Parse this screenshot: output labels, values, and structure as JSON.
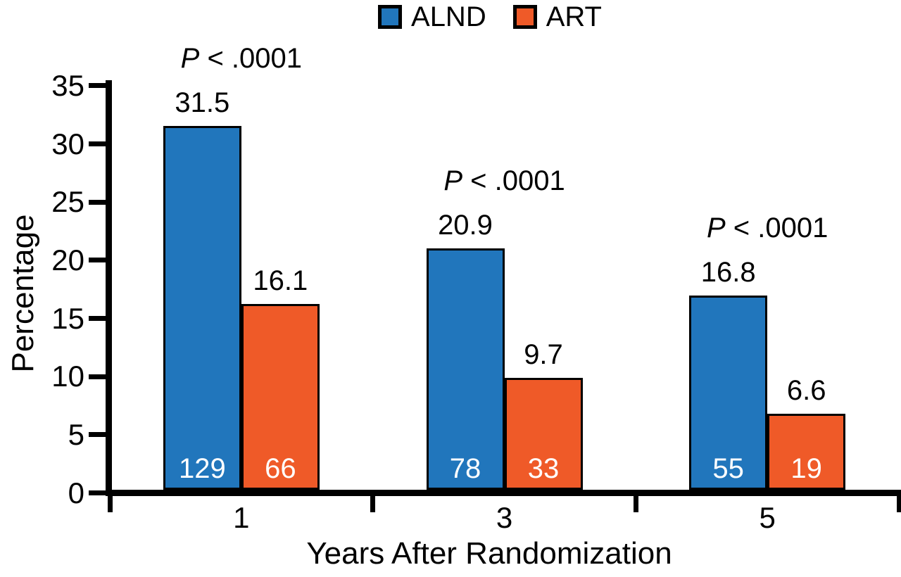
{
  "chart_data": {
    "type": "bar",
    "categories": [
      "1",
      "3",
      "5"
    ],
    "series": [
      {
        "name": "ALND",
        "color": "#2176BC",
        "values": [
          31.5,
          20.9,
          16.8
        ],
        "counts": [
          "129",
          "78",
          "55"
        ]
      },
      {
        "name": "ART",
        "color": "#EF5A28",
        "values": [
          16.1,
          9.7,
          6.6
        ],
        "counts": [
          "66",
          "33",
          "19"
        ]
      }
    ],
    "p_labels": [
      "P < .0001",
      "P < .0001",
      "P < .0001"
    ],
    "xlabel": "Years After Randomization",
    "ylabel": "Percentage",
    "yticks": [
      0,
      5,
      10,
      15,
      20,
      25,
      30,
      35
    ],
    "ylim": [
      0,
      35
    ],
    "legend_position": "top",
    "grid": false,
    "bar_outline_color": "#000000",
    "axis_color": "#000000",
    "count_text_color": "#FFFFFF",
    "value_text_color": "#000000"
  }
}
